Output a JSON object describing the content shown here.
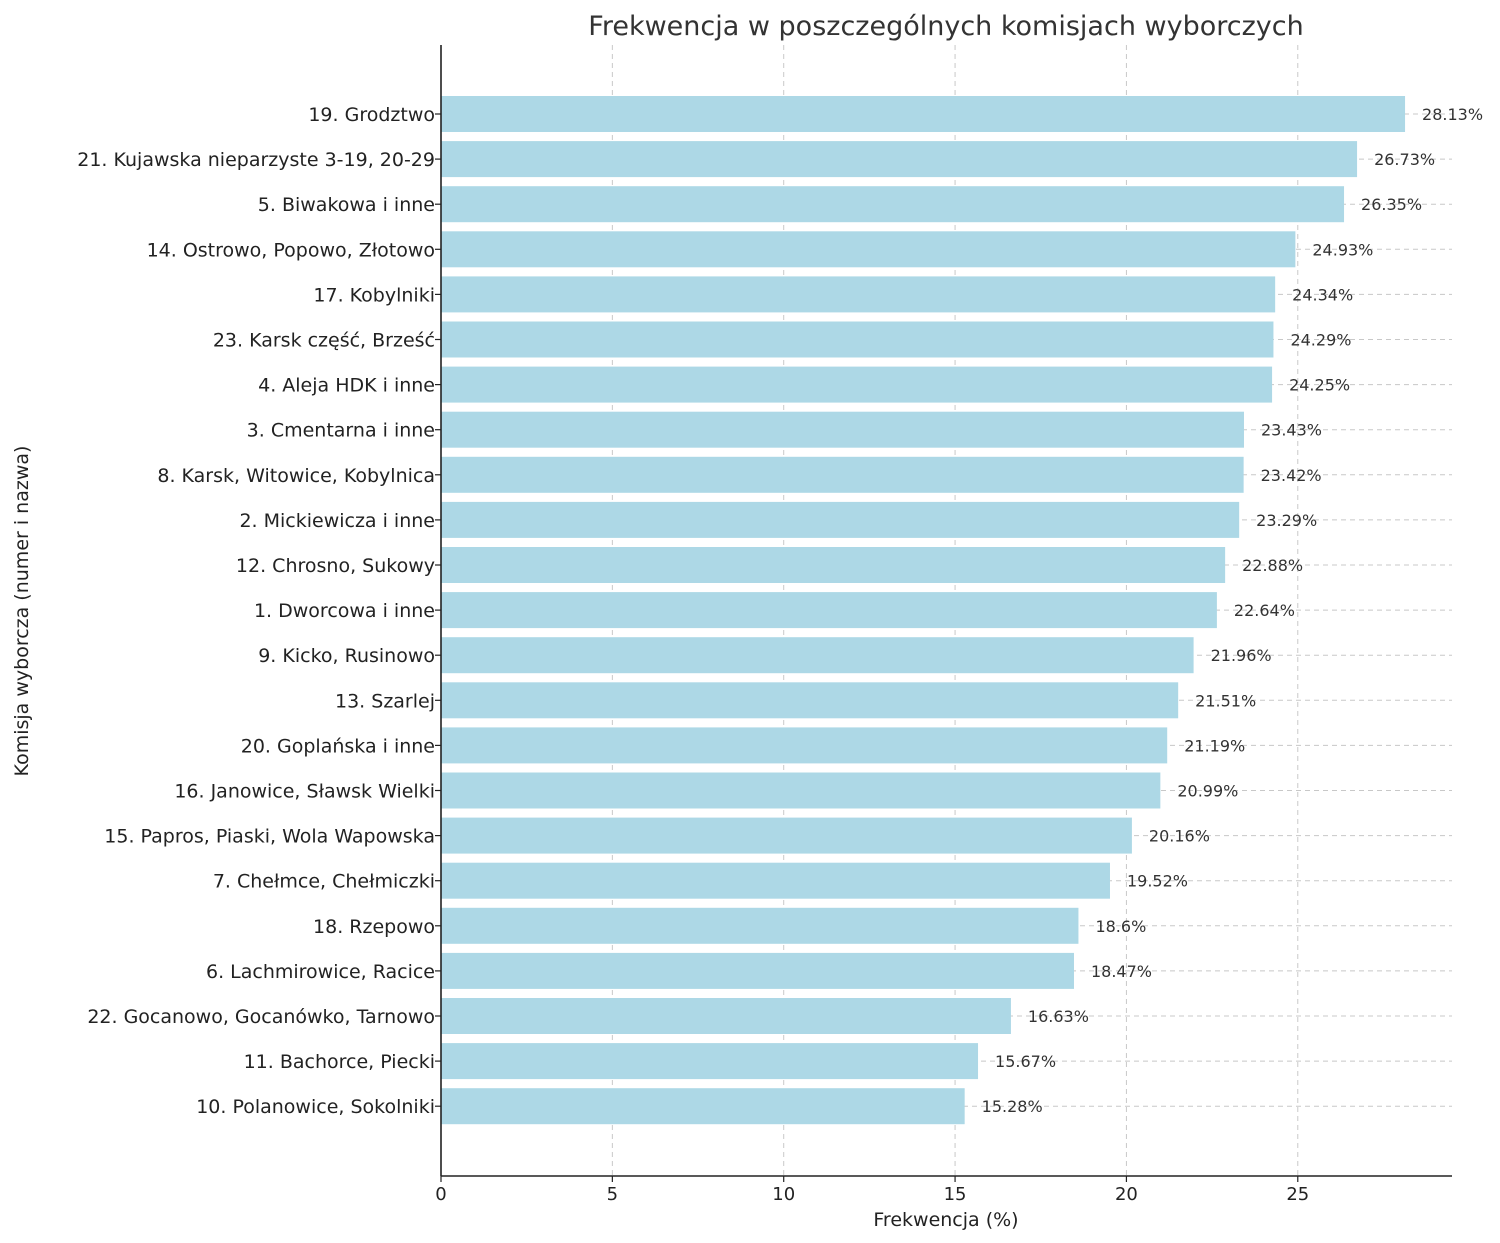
{
  "chart_data": {
    "type": "bar",
    "orientation": "horizontal",
    "title": "Frekwencja w poszczególnych komisjach wyborczych",
    "xlabel": "Frekwencja (%)",
    "ylabel": "Komisja wyborcza (numer i nazwa)",
    "xlim": [
      0,
      29.5
    ],
    "xticks": [
      "0",
      "5",
      "10",
      "15",
      "20",
      "25"
    ],
    "grid": true,
    "bar_color": "#add8e6",
    "categories": [
      "19. Grodztwo",
      "21. Kujawska nieparzyste 3-19, 20-29",
      "5. Biwakowa i inne",
      "14. Ostrowo, Popowo, Złotowo",
      "17. Kobylniki",
      "23. Karsk część, Brześć",
      "4. Aleja HDK i inne",
      "3. Cmentarna i inne",
      "8. Karsk, Witowice, Kobylnica",
      "2. Mickiewicza i inne",
      "12. Chrosno, Sukowy",
      "1. Dworcowa i inne",
      "9. Kicko, Rusinowo",
      "13. Szarlej",
      "20. Goplańska i inne",
      "16. Janowice, Sławsk Wielki",
      "15. Papros, Piaski, Wola Wapowska",
      "7. Chełmce, Chełmiczki",
      "18. Rzepowo",
      "6. Lachmirowice, Racice",
      "22. Gocanowo, Gocanówko, Tarnowo",
      "11. Bachorce, Piecki",
      "10. Polanowice, Sokolniki"
    ],
    "values": [
      28.13,
      26.73,
      26.35,
      24.93,
      24.34,
      24.29,
      24.25,
      23.43,
      23.42,
      23.29,
      22.88,
      22.64,
      21.96,
      21.51,
      21.19,
      20.99,
      20.16,
      19.52,
      18.6,
      18.47,
      16.63,
      15.67,
      15.28
    ],
    "value_labels": [
      "28.13%",
      "26.73%",
      "26.35%",
      "24.93%",
      "24.34%",
      "24.29%",
      "24.25%",
      "23.43%",
      "23.42%",
      "23.29%",
      "22.88%",
      "22.64%",
      "21.96%",
      "21.51%",
      "21.19%",
      "20.99%",
      "20.16%",
      "19.52%",
      "18.6%",
      "18.47%",
      "16.63%",
      "15.67%",
      "15.28%"
    ]
  }
}
